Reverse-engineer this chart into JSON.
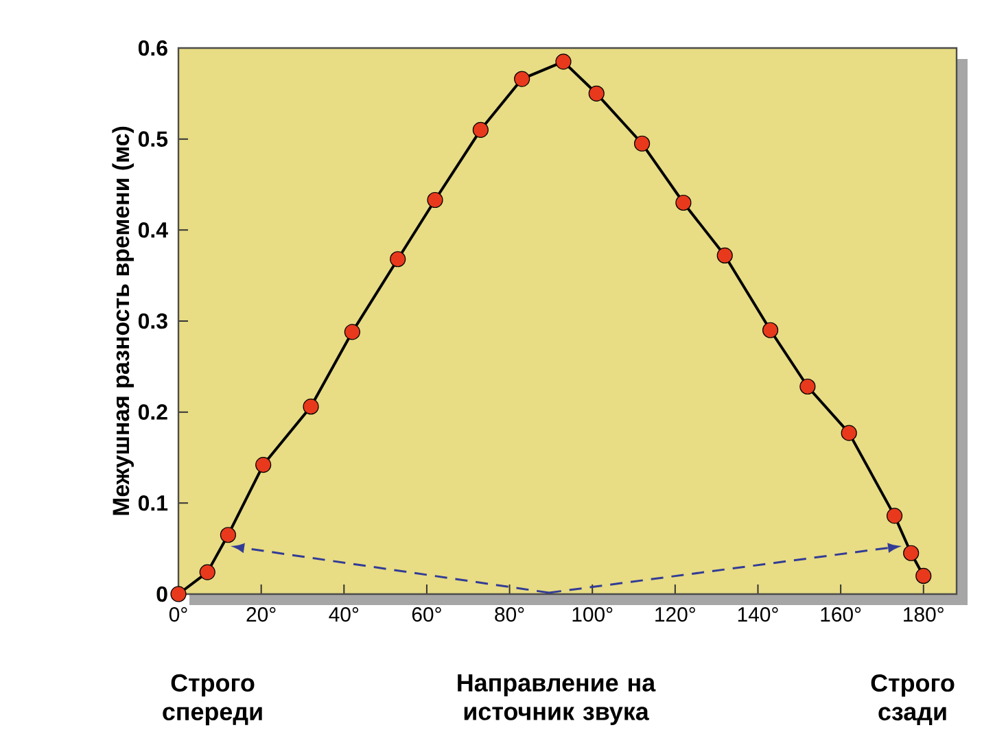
{
  "chart_data": {
    "type": "line",
    "xlabel": "Направление на источник звука",
    "ylabel": "Межушная разность времени (мс)",
    "x": [
      0,
      7,
      12,
      20.5,
      32,
      42,
      53,
      62,
      73,
      83,
      93,
      101,
      112,
      122,
      132,
      143,
      152,
      162,
      173,
      177,
      180
    ],
    "series": [
      {
        "color": "#e8391d",
        "values": [
          0,
          0.024,
          0.065,
          0.142,
          0.206,
          0.288,
          0.368,
          0.433,
          0.51,
          0.566,
          0.585,
          0.55,
          0.495,
          0.43,
          0.372,
          0.29,
          0.228,
          0.177,
          0.086,
          0.045,
          0.02
        ]
      }
    ],
    "xlim": [
      0,
      188
    ],
    "ylim": [
      0,
      0.6
    ],
    "xticks": [
      {
        "value": 0,
        "label": "0°"
      },
      {
        "value": 20,
        "label": "20°"
      },
      {
        "value": 40,
        "label": "40°"
      },
      {
        "value": 60,
        "label": "60°"
      },
      {
        "value": 80,
        "label": "80°"
      },
      {
        "value": 100,
        "label": "100°"
      },
      {
        "value": 120,
        "label": "120°"
      },
      {
        "value": 140,
        "label": "140°"
      },
      {
        "value": 160,
        "label": "160°"
      },
      {
        "value": 180,
        "label": "180°"
      }
    ],
    "yticks": [
      0,
      0.1,
      0.2,
      0.3,
      0.4,
      0.5,
      0.6
    ],
    "marker": "circle",
    "line_style": "solid",
    "annotations": [
      "Строго спереди",
      "Строго сзади"
    ]
  }
}
